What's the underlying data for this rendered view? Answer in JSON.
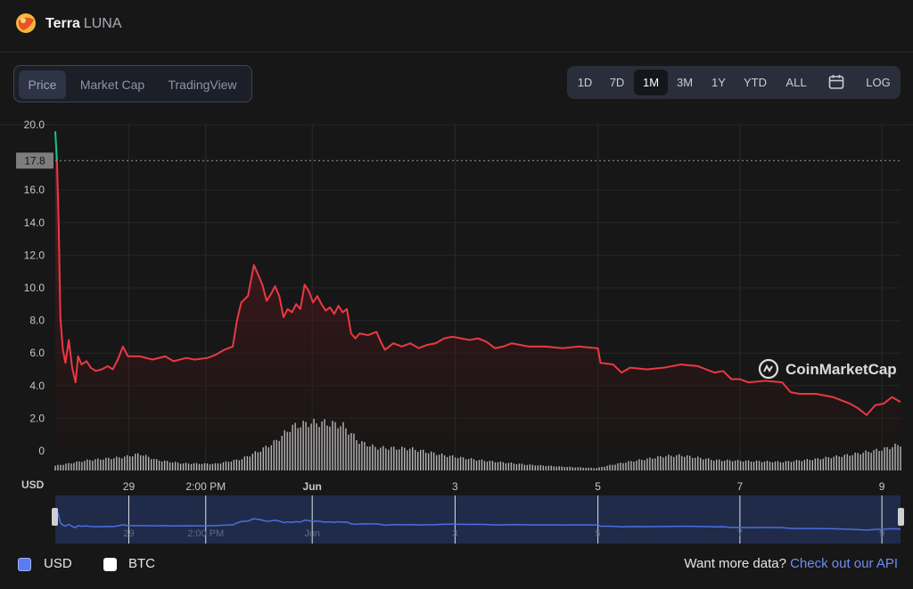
{
  "header": {
    "coin_name": "Terra",
    "coin_symbol": "LUNA",
    "logo_icon": "terra-luna-logo"
  },
  "tabs": [
    {
      "label": "Price",
      "active": true
    },
    {
      "label": "Market Cap",
      "active": false
    },
    {
      "label": "TradingView",
      "active": false
    }
  ],
  "ranges": [
    {
      "label": "1D"
    },
    {
      "label": "7D"
    },
    {
      "label": "1M",
      "active": true
    },
    {
      "label": "3M"
    },
    {
      "label": "1Y"
    },
    {
      "label": "YTD"
    },
    {
      "label": "ALL"
    },
    {
      "label": "LOG"
    }
  ],
  "calendar_icon": "calendar-icon",
  "legend": {
    "usd_label": "USD",
    "usd_checked": true,
    "btc_label": "BTC",
    "btc_checked": false
  },
  "more_data": {
    "text": "Want more data?",
    "link": "Check out our API"
  },
  "colors": {
    "line": "#ea3943",
    "start_line": "#16c784",
    "volume": "#b8b8b8",
    "navigator": "#4a6fe0",
    "navigator_bg": "#202b4a"
  },
  "chart_data": {
    "type": "line",
    "currency_label": "USD",
    "watermark": "CoinMarketCap",
    "y_ticks": [
      "20.0",
      "16.0",
      "14.0",
      "12.0",
      "10.0",
      "8.0",
      "6.0",
      "4.0",
      "2.0",
      "0"
    ],
    "ylim": [
      0,
      20
    ],
    "current_price_label": "17.8",
    "current_price": 17.8,
    "x_ticks": [
      {
        "label": "29",
        "x": 0.087
      },
      {
        "label": "2:00 PM",
        "x": 0.178
      },
      {
        "label": "Jun",
        "x": 0.304
      },
      {
        "label": "3",
        "x": 0.473
      },
      {
        "label": "5",
        "x": 0.642
      },
      {
        "label": "7",
        "x": 0.81
      },
      {
        "label": "9",
        "x": 0.978
      }
    ],
    "series": [
      {
        "name": "Price",
        "points": [
          [
            0,
            19.6
          ],
          [
            0.002,
            17.8
          ],
          [
            0.004,
            14
          ],
          [
            0.006,
            8.2
          ],
          [
            0.009,
            6.2
          ],
          [
            0.012,
            5.4
          ],
          [
            0.016,
            6.8
          ],
          [
            0.02,
            5.1
          ],
          [
            0.024,
            4.2
          ],
          [
            0.027,
            5.8
          ],
          [
            0.031,
            5.3
          ],
          [
            0.037,
            5.5
          ],
          [
            0.042,
            5.1
          ],
          [
            0.048,
            4.9
          ],
          [
            0.055,
            5.0
          ],
          [
            0.062,
            5.2
          ],
          [
            0.068,
            5.0
          ],
          [
            0.074,
            5.6
          ],
          [
            0.08,
            6.4
          ],
          [
            0.086,
            5.8
          ],
          [
            0.1,
            5.8
          ],
          [
            0.115,
            5.6
          ],
          [
            0.13,
            5.8
          ],
          [
            0.14,
            5.5
          ],
          [
            0.155,
            5.7
          ],
          [
            0.165,
            5.6
          ],
          [
            0.18,
            5.7
          ],
          [
            0.19,
            5.9
          ],
          [
            0.2,
            6.2
          ],
          [
            0.21,
            6.4
          ],
          [
            0.215,
            8.0
          ],
          [
            0.22,
            9.1
          ],
          [
            0.228,
            9.5
          ],
          [
            0.232,
            10.6
          ],
          [
            0.235,
            11.4
          ],
          [
            0.24,
            10.8
          ],
          [
            0.245,
            10.2
          ],
          [
            0.25,
            9.2
          ],
          [
            0.255,
            9.6
          ],
          [
            0.26,
            10.1
          ],
          [
            0.265,
            9.5
          ],
          [
            0.27,
            8.2
          ],
          [
            0.275,
            8.7
          ],
          [
            0.28,
            8.5
          ],
          [
            0.285,
            9.0
          ],
          [
            0.29,
            8.7
          ],
          [
            0.295,
            10.2
          ],
          [
            0.3,
            9.8
          ],
          [
            0.305,
            9.1
          ],
          [
            0.31,
            9.5
          ],
          [
            0.315,
            9.0
          ],
          [
            0.32,
            8.6
          ],
          [
            0.325,
            8.8
          ],
          [
            0.33,
            8.4
          ],
          [
            0.335,
            8.9
          ],
          [
            0.34,
            8.5
          ],
          [
            0.345,
            8.7
          ],
          [
            0.35,
            7.2
          ],
          [
            0.355,
            6.9
          ],
          [
            0.36,
            7.2
          ],
          [
            0.37,
            7.1
          ],
          [
            0.38,
            7.3
          ],
          [
            0.385,
            6.7
          ],
          [
            0.39,
            6.2
          ],
          [
            0.4,
            6.6
          ],
          [
            0.41,
            6.4
          ],
          [
            0.42,
            6.6
          ],
          [
            0.43,
            6.3
          ],
          [
            0.44,
            6.5
          ],
          [
            0.45,
            6.6
          ],
          [
            0.46,
            6.9
          ],
          [
            0.47,
            7.0
          ],
          [
            0.48,
            6.9
          ],
          [
            0.49,
            6.8
          ],
          [
            0.5,
            6.9
          ],
          [
            0.51,
            6.7
          ],
          [
            0.52,
            6.3
          ],
          [
            0.53,
            6.4
          ],
          [
            0.54,
            6.6
          ],
          [
            0.56,
            6.4
          ],
          [
            0.58,
            6.4
          ],
          [
            0.6,
            6.3
          ],
          [
            0.62,
            6.4
          ],
          [
            0.64,
            6.3
          ],
          [
            0.642,
            6.3
          ],
          [
            0.645,
            5.4
          ],
          [
            0.66,
            5.3
          ],
          [
            0.67,
            4.8
          ],
          [
            0.68,
            5.1
          ],
          [
            0.7,
            5.0
          ],
          [
            0.72,
            5.1
          ],
          [
            0.74,
            5.3
          ],
          [
            0.76,
            5.2
          ],
          [
            0.77,
            5.0
          ],
          [
            0.78,
            4.8
          ],
          [
            0.79,
            4.9
          ],
          [
            0.8,
            4.4
          ],
          [
            0.81,
            4.4
          ],
          [
            0.82,
            4.2
          ],
          [
            0.84,
            4.3
          ],
          [
            0.86,
            4.2
          ],
          [
            0.87,
            3.6
          ],
          [
            0.88,
            3.5
          ],
          [
            0.9,
            3.5
          ],
          [
            0.92,
            3.3
          ],
          [
            0.94,
            2.9
          ],
          [
            0.95,
            2.6
          ],
          [
            0.96,
            2.2
          ],
          [
            0.97,
            2.8
          ],
          [
            0.98,
            2.9
          ],
          [
            0.99,
            3.3
          ],
          [
            1.0,
            3.0
          ]
        ]
      },
      {
        "name": "Volume",
        "points": [
          [
            0,
            0.1
          ],
          [
            0.04,
            0.22
          ],
          [
            0.08,
            0.28
          ],
          [
            0.1,
            0.35
          ],
          [
            0.12,
            0.22
          ],
          [
            0.15,
            0.15
          ],
          [
            0.19,
            0.14
          ],
          [
            0.22,
            0.24
          ],
          [
            0.24,
            0.4
          ],
          [
            0.26,
            0.6
          ],
          [
            0.28,
            0.92
          ],
          [
            0.3,
            1.0
          ],
          [
            0.32,
            1.0
          ],
          [
            0.34,
            0.95
          ],
          [
            0.36,
            0.6
          ],
          [
            0.38,
            0.48
          ],
          [
            0.42,
            0.46
          ],
          [
            0.46,
            0.32
          ],
          [
            0.5,
            0.22
          ],
          [
            0.56,
            0.12
          ],
          [
            0.6,
            0.08
          ],
          [
            0.64,
            0.05
          ],
          [
            0.67,
            0.16
          ],
          [
            0.72,
            0.3
          ],
          [
            0.74,
            0.32
          ],
          [
            0.78,
            0.22
          ],
          [
            0.82,
            0.2
          ],
          [
            0.86,
            0.18
          ],
          [
            0.9,
            0.24
          ],
          [
            0.94,
            0.33
          ],
          [
            0.98,
            0.45
          ],
          [
            1.0,
            0.55
          ]
        ]
      }
    ]
  }
}
